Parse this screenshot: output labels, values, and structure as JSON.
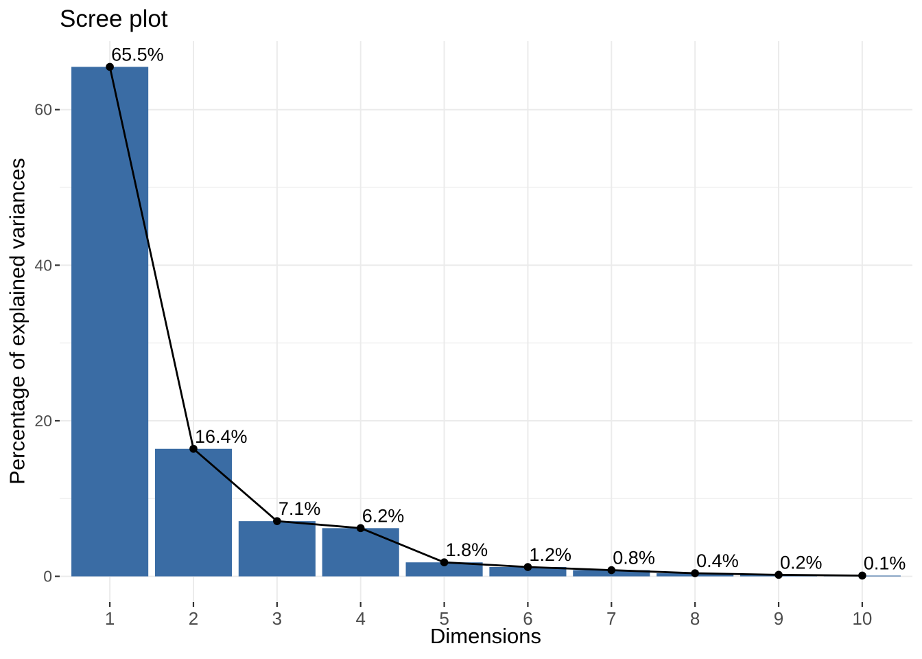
{
  "chart_data": {
    "type": "bar",
    "overlay": "line-with-points",
    "title": "Scree plot",
    "xlabel": "Dimensions",
    "ylabel": "Percentage of explained variances",
    "categories": [
      "1",
      "2",
      "3",
      "4",
      "5",
      "6",
      "7",
      "8",
      "9",
      "10"
    ],
    "values": [
      65.5,
      16.4,
      7.1,
      6.2,
      1.8,
      1.2,
      0.8,
      0.4,
      0.2,
      0.1
    ],
    "point_labels": [
      "65.5%",
      "16.4%",
      "7.1%",
      "6.2%",
      "1.8%",
      "1.2%",
      "0.8%",
      "0.4%",
      "0.2%",
      "0.1%"
    ],
    "yticks": [
      0,
      20,
      40,
      60
    ],
    "yticks_minor": [
      10,
      30,
      50
    ],
    "ylim": [
      -3.3,
      68.8
    ],
    "grid": true,
    "legend": "none",
    "colors": {
      "bar_fill": "#3A6CA4",
      "line": "#000000",
      "point": "#000000",
      "label_text": "#000000",
      "grid_major": "#EBEBEB",
      "grid_minor": "#EDEDED",
      "axis_text": "#4D4D4D",
      "tick_mark": "#333333",
      "background": "#FFFFFF"
    }
  }
}
